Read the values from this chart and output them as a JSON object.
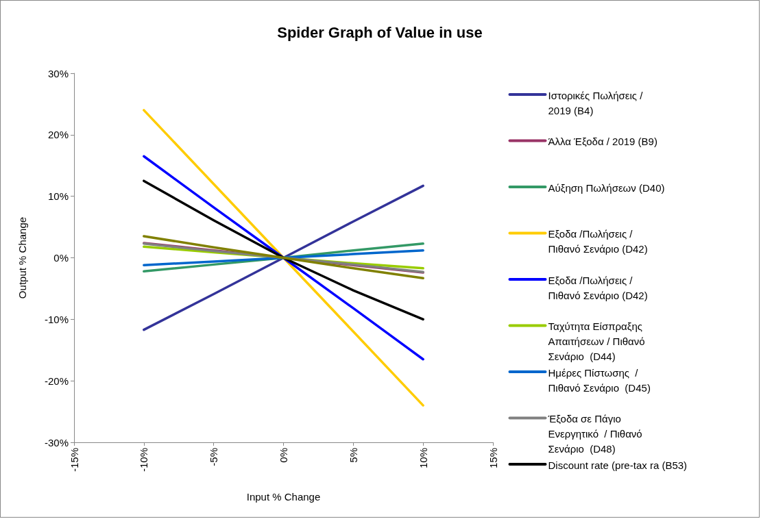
{
  "chart_data": {
    "type": "line",
    "title": "Spider Graph of Value in use",
    "xlabel": "Input % Change",
    "ylabel": "Output % Change",
    "x": [
      -10,
      -5,
      0,
      5,
      10
    ],
    "xlim": [
      -15,
      15
    ],
    "xticks": [
      {
        "value": -15,
        "label": "-15%"
      },
      {
        "value": -10,
        "label": "-10%"
      },
      {
        "value": -5,
        "label": "-5%"
      },
      {
        "value": 0,
        "label": "0%"
      },
      {
        "value": 5,
        "label": "5%"
      },
      {
        "value": 10,
        "label": "10%"
      },
      {
        "value": 15,
        "label": "15%"
      }
    ],
    "ylim": [
      -30,
      30
    ],
    "yticks": [
      {
        "value": -30,
        "label": "-30%"
      },
      {
        "value": -20,
        "label": "-20%"
      },
      {
        "value": -10,
        "label": "-10%"
      },
      {
        "value": 0,
        "label": "0%"
      },
      {
        "value": 10,
        "label": "10%"
      },
      {
        "value": 20,
        "label": "20%"
      },
      {
        "value": 30,
        "label": "30%"
      }
    ],
    "grid": false,
    "legend": "right",
    "marker": "none",
    "line_style": "solid",
    "series": [
      {
        "name": "Ιστορικές Πωλήσεις / 2019 (B4)",
        "color": "#333399",
        "values": [
          -11.7,
          -5.9,
          0,
          5.9,
          11.7
        ]
      },
      {
        "name": "Άλλα Έξοδα / 2019 (B9)",
        "color": "#993366",
        "values": [
          2.4,
          1.2,
          0,
          -1.2,
          -2.4
        ]
      },
      {
        "name": "Αύξηση Πωλήσεων (D40)",
        "color": "#339966",
        "values": [
          -2.2,
          -1.1,
          0,
          1.2,
          2.3
        ]
      },
      {
        "name": "Εξοδα /Πωλήσεις / Πιθανό Σενάριο (D42)",
        "color": "#ffcc00",
        "values": [
          24,
          12,
          0,
          -12,
          -24
        ]
      },
      {
        "name": "Εξοδα /Πωλήσεις / Πιθανό Σενάριο (D42)",
        "color": "#0000ff",
        "values": [
          16.5,
          8.2,
          0,
          -8.2,
          -16.5
        ]
      },
      {
        "name": "Ταχύτητα Είσπραξης Απαιτήσεων / Πιθανό Σενάριο  (D44)",
        "color": "#99cc00",
        "values": [
          1.8,
          0.9,
          0,
          -0.9,
          -1.7
        ]
      },
      {
        "name": "Ημέρες Πίστωσης  / Πιθανό Σενάριο  (D45)",
        "color": "#0066cc",
        "values": [
          -1.2,
          -0.6,
          0,
          0.6,
          1.2
        ]
      },
      {
        "name": "Έξοδα σε Πάγιο Ενεργητικό  / Πιθανό Σενάριο  (D48)",
        "color": "#808080",
        "values": [
          2.3,
          1.1,
          0,
          -1.1,
          -2.3
        ]
      },
      {
        "name": "Discount rate (pre-tax ra (B53)",
        "color": "#000000",
        "values": [
          12.5,
          6.1,
          0,
          -5.3,
          -10
        ]
      },
      {
        "color": "#808000",
        "values": [
          3.5,
          1.7,
          0,
          -1.7,
          -3.3
        ]
      }
    ]
  }
}
